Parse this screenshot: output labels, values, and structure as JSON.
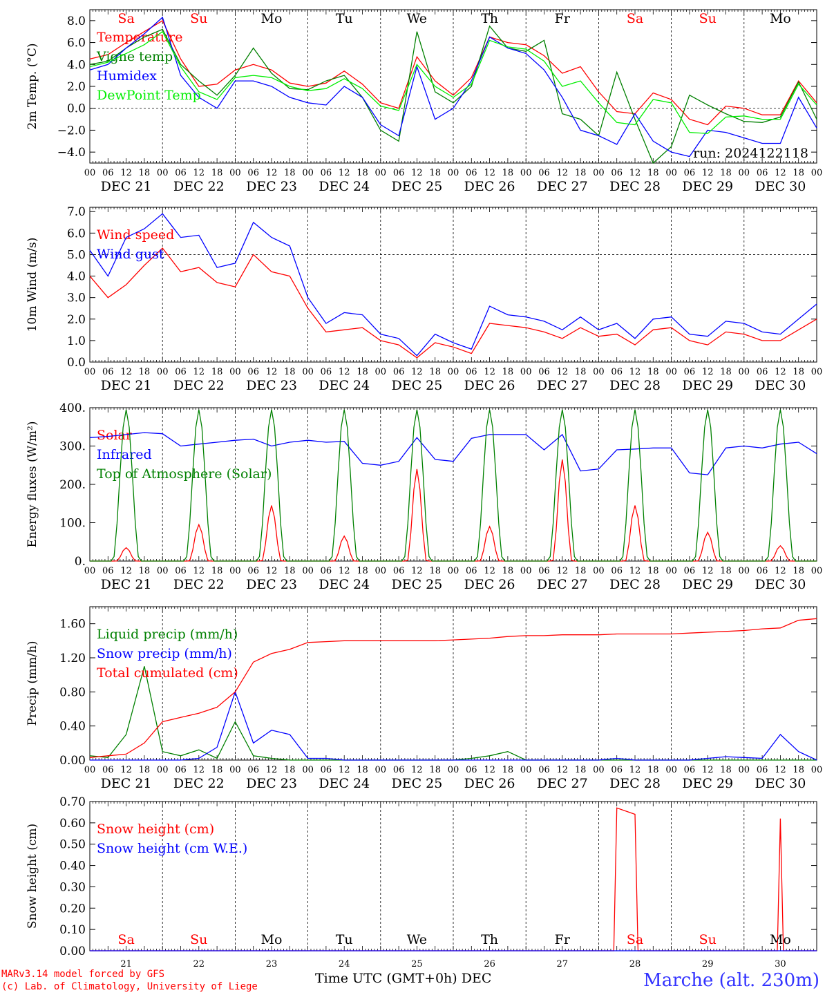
{
  "x_axis": {
    "start_label": "DEC 21",
    "hour_ticks": [
      "00",
      "06",
      "12",
      "18"
    ],
    "end_tick": "00",
    "date_labels": [
      "DEC 21",
      "DEC 22",
      "DEC 23",
      "DEC 24",
      "DEC 25",
      "DEC 26",
      "DEC 27",
      "DEC 28",
      "DEC 29",
      "DEC 30"
    ],
    "day_names": [
      "Sa",
      "Su",
      "Mo",
      "Tu",
      "We",
      "Th",
      "Fr",
      "Sa",
      "Su",
      "Mo"
    ],
    "day_numbers": [
      "21",
      "22",
      "23",
      "24",
      "25",
      "26",
      "27",
      "28",
      "29",
      "30"
    ],
    "weekend_color": "#ff0000",
    "weekday_color": "#000000",
    "title": "Time UTC (GMT+0h)",
    "title_suffix": "DEC"
  },
  "footer": {
    "credit_line1": "MARv3.14 model forced by GFS",
    "credit_line2": "(c) Lab. of Climatology, University of Liege",
    "station": "Marche (alt. 230m)"
  },
  "chart_data": [
    {
      "type": "line",
      "ylabel": "2m Temp. (°C)",
      "ylim": [
        -5,
        9
      ],
      "yticks": [
        -4,
        -2,
        0,
        2,
        4,
        6,
        8
      ],
      "ytick_labels": [
        "−4.0",
        "−2.0",
        "0.0",
        "2.0",
        "4.0",
        "6.0",
        "8.0"
      ],
      "annotation": "run: 2024122118",
      "hline": 0,
      "x_hours": [
        0,
        6,
        12,
        18,
        24,
        30,
        36,
        42,
        48,
        54,
        60,
        66,
        72,
        78,
        84,
        90,
        96,
        102,
        108,
        114,
        120,
        126,
        132,
        138,
        144,
        150,
        156,
        162,
        168,
        174,
        180,
        186,
        192,
        198,
        204,
        210,
        216,
        222,
        228,
        234,
        240
      ],
      "series": [
        {
          "name": "Temperature",
          "color": "#ff0000",
          "values": [
            4.5,
            4.9,
            6.0,
            7.0,
            8.0,
            4.5,
            2.0,
            2.2,
            3.5,
            4.0,
            3.5,
            2.3,
            2.0,
            2.3,
            3.4,
            2.2,
            0.5,
            0.0,
            4.7,
            2.5,
            1.2,
            2.8,
            6.5,
            6.0,
            5.8,
            4.8,
            3.2,
            3.8,
            1.5,
            -0.3,
            -0.5,
            1.4,
            0.8,
            -1.0,
            -1.5,
            0.2,
            0.0,
            -0.6,
            -0.6,
            2.5,
            0.5
          ]
        },
        {
          "name": "Vigne temp",
          "color": "#008000",
          "values": [
            4.0,
            4.3,
            5.5,
            6.5,
            7.2,
            4.0,
            2.5,
            1.2,
            3.0,
            5.5,
            3.2,
            1.8,
            1.7,
            2.5,
            3.0,
            1.0,
            -2.0,
            -3.0,
            7.0,
            1.5,
            0.5,
            2.0,
            7.5,
            5.5,
            5.2,
            6.2,
            -0.5,
            -1.0,
            -2.5,
            3.3,
            -1.0,
            -5.0,
            -3.5,
            1.2,
            0.3,
            -0.5,
            -1.2,
            -1.3,
            -0.8,
            2.4,
            -1.0
          ]
        },
        {
          "name": "Humidex",
          "color": "#0000ff",
          "values": [
            3.5,
            4.0,
            5.5,
            6.8,
            8.3,
            3.0,
            1.0,
            0.0,
            2.5,
            2.5,
            2.0,
            1.0,
            0.5,
            0.3,
            2.0,
            1.0,
            -1.5,
            -2.5,
            3.8,
            -1.0,
            0.0,
            2.5,
            6.5,
            5.5,
            5.0,
            3.5,
            1.0,
            -2.0,
            -2.5,
            -3.3,
            -0.5,
            -3.0,
            -4.0,
            -4.4,
            -2.0,
            -2.2,
            -2.7,
            -3.2,
            -3.2,
            1.0,
            -1.8
          ]
        },
        {
          "name": "DewPoint Temp",
          "color": "#00ee00",
          "values": [
            3.8,
            4.2,
            5.0,
            5.8,
            7.0,
            3.8,
            1.5,
            0.8,
            2.8,
            3.0,
            2.8,
            2.0,
            1.6,
            1.8,
            2.7,
            1.8,
            0.2,
            -0.2,
            4.0,
            2.0,
            1.0,
            2.2,
            6.2,
            5.6,
            5.4,
            4.3,
            2.0,
            2.5,
            0.5,
            -1.3,
            -1.5,
            0.8,
            0.5,
            -2.2,
            -2.3,
            -0.8,
            -0.7,
            -1.0,
            -1.0,
            2.2,
            0.3
          ]
        }
      ]
    },
    {
      "type": "line",
      "ylabel": "10m Wind (m/s)",
      "ylim": [
        0,
        7.2
      ],
      "yticks": [
        0,
        1,
        2,
        3,
        4,
        5,
        6,
        7
      ],
      "ytick_labels": [
        "0.0",
        "1.0",
        "2.0",
        "3.0",
        "4.0",
        "5.0",
        "6.0",
        "7.0"
      ],
      "hline": 5,
      "x_hours": [
        0,
        6,
        12,
        18,
        24,
        30,
        36,
        42,
        48,
        54,
        60,
        66,
        72,
        78,
        84,
        90,
        96,
        102,
        108,
        114,
        120,
        126,
        132,
        138,
        144,
        150,
        156,
        162,
        168,
        174,
        180,
        186,
        192,
        198,
        204,
        210,
        216,
        222,
        228,
        234,
        240
      ],
      "series": [
        {
          "name": "Wind speed",
          "color": "#ff0000",
          "values": [
            4.0,
            3.0,
            3.6,
            4.5,
            5.3,
            4.2,
            4.4,
            3.7,
            3.5,
            5.0,
            4.2,
            4.0,
            2.5,
            1.4,
            1.5,
            1.6,
            1.0,
            0.8,
            0.2,
            0.9,
            0.7,
            0.4,
            1.8,
            1.7,
            1.6,
            1.4,
            1.1,
            1.6,
            1.2,
            1.3,
            0.8,
            1.5,
            1.6,
            1.0,
            0.8,
            1.4,
            1.3,
            1.0,
            1.0,
            1.5,
            2.0
          ]
        },
        {
          "name": "Wind gust",
          "color": "#0000ff",
          "values": [
            5.2,
            4.0,
            5.8,
            6.2,
            6.9,
            5.8,
            5.9,
            4.4,
            4.6,
            6.5,
            5.8,
            5.4,
            3.0,
            1.8,
            2.3,
            2.2,
            1.3,
            1.1,
            0.3,
            1.3,
            0.9,
            0.6,
            2.6,
            2.2,
            2.1,
            1.9,
            1.5,
            2.1,
            1.5,
            1.8,
            1.1,
            2.0,
            2.1,
            1.3,
            1.2,
            1.9,
            1.8,
            1.4,
            1.3,
            2.0,
            2.7
          ]
        }
      ]
    },
    {
      "type": "line",
      "ylabel": "Energy fluxes (W/m²)",
      "ylim": [
        0,
        400
      ],
      "yticks": [
        0,
        100,
        200,
        300,
        400
      ],
      "ytick_labels": [
        "0.",
        "100.",
        "200.",
        "300.",
        "400."
      ],
      "series": [
        {
          "name": "Solar",
          "color": "#ff0000",
          "daily_peaks": [
            35,
            95,
            145,
            65,
            240,
            90,
            265,
            145,
            75,
            40
          ]
        },
        {
          "name": "Infrared",
          "color": "#0000ff",
          "x_hours": [
            0,
            6,
            12,
            18,
            24,
            30,
            36,
            42,
            48,
            54,
            60,
            66,
            72,
            78,
            84,
            90,
            96,
            102,
            108,
            114,
            120,
            126,
            132,
            138,
            144,
            150,
            156,
            162,
            168,
            174,
            180,
            186,
            192,
            198,
            204,
            210,
            216,
            222,
            228,
            234,
            240
          ],
          "values": [
            322,
            325,
            330,
            335,
            332,
            300,
            305,
            310,
            315,
            318,
            300,
            310,
            315,
            310,
            312,
            255,
            250,
            260,
            322,
            265,
            260,
            320,
            330,
            330,
            330,
            290,
            330,
            235,
            240,
            290,
            292,
            295,
            295,
            230,
            225,
            295,
            300,
            295,
            305,
            310,
            280
          ]
        },
        {
          "name": "Top of Atmosphere (Solar)",
          "color": "#008000",
          "daily_peaks": [
            395,
            395,
            395,
            395,
            395,
            395,
            395,
            395,
            395,
            395
          ]
        }
      ]
    },
    {
      "type": "line",
      "ylabel": "Precip (mm/h)",
      "ylim": [
        0,
        1.8
      ],
      "yticks": [
        0,
        0.4,
        0.8,
        1.2,
        1.6
      ],
      "ytick_labels": [
        "0.00",
        "0.40",
        "0.80",
        "1.20",
        "1.60"
      ],
      "x_hours": [
        0,
        6,
        12,
        18,
        24,
        30,
        36,
        42,
        48,
        54,
        60,
        66,
        72,
        78,
        84,
        90,
        96,
        102,
        108,
        114,
        120,
        126,
        132,
        138,
        144,
        150,
        156,
        162,
        168,
        174,
        180,
        186,
        192,
        198,
        204,
        210,
        216,
        222,
        228,
        234,
        240
      ],
      "series": [
        {
          "name": "Liquid precip (mm/h)",
          "color": "#008000",
          "values": [
            0.05,
            0.03,
            0.3,
            1.1,
            0.1,
            0.05,
            0.12,
            0.02,
            0.45,
            0.05,
            0.02,
            0.0,
            0.0,
            0.0,
            0.0,
            0.0,
            0.0,
            0.0,
            0.0,
            0.0,
            0.0,
            0.02,
            0.05,
            0.1,
            0.0,
            0.0,
            0.0,
            0.0,
            0.0,
            0.0,
            0.0,
            0.0,
            0.0,
            0.0,
            0.0,
            0.0,
            0.0,
            0.0,
            0.0,
            0.0,
            0.0
          ]
        },
        {
          "name": "Snow precip (mm/h)",
          "color": "#0000ff",
          "values": [
            0.0,
            0.0,
            0.0,
            0.0,
            0.0,
            0.0,
            0.02,
            0.15,
            0.8,
            0.2,
            0.35,
            0.3,
            0.02,
            0.02,
            0.0,
            0.0,
            0.0,
            0.0,
            0.0,
            0.0,
            0.0,
            0.0,
            0.0,
            0.0,
            0.0,
            0.0,
            0.0,
            0.0,
            0.0,
            0.02,
            0.0,
            0.0,
            0.0,
            0.0,
            0.02,
            0.04,
            0.03,
            0.02,
            0.3,
            0.1,
            0.0
          ]
        },
        {
          "name": "Total cumulated (cm)",
          "color": "#ff0000",
          "values": [
            0.03,
            0.05,
            0.07,
            0.2,
            0.45,
            0.5,
            0.55,
            0.62,
            0.8,
            1.15,
            1.25,
            1.3,
            1.38,
            1.39,
            1.4,
            1.4,
            1.4,
            1.4,
            1.4,
            1.4,
            1.41,
            1.42,
            1.43,
            1.45,
            1.46,
            1.46,
            1.47,
            1.47,
            1.47,
            1.48,
            1.48,
            1.48,
            1.48,
            1.49,
            1.5,
            1.51,
            1.52,
            1.54,
            1.55,
            1.64,
            1.66
          ]
        }
      ]
    },
    {
      "type": "line",
      "ylabel": "Snow height (cm)",
      "ylim": [
        0,
        0.7
      ],
      "yticks": [
        0,
        0.1,
        0.2,
        0.3,
        0.4,
        0.5,
        0.6,
        0.7
      ],
      "ytick_labels": [
        "0.00",
        "0.10",
        "0.20",
        "0.30",
        "0.40",
        "0.50",
        "0.60",
        "0.70"
      ],
      "series": [
        {
          "name": "Snow height (cm)",
          "color": "#ff0000",
          "x_hours": [
            0,
            173,
            174,
            180,
            181,
            227,
            228,
            229,
            240
          ],
          "values": [
            0,
            0,
            0.67,
            0.64,
            0,
            0,
            0.62,
            0,
            0
          ]
        },
        {
          "name": "Snow height (cm W.E.)",
          "color": "#0000ff",
          "x_hours": [
            0,
            240
          ],
          "values": [
            0,
            0
          ]
        }
      ]
    }
  ]
}
